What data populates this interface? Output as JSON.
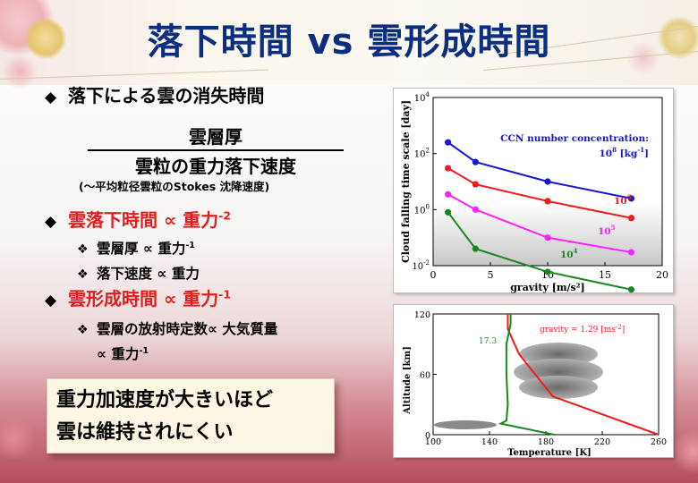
{
  "title": "落下時間 vs 雲形成時間",
  "bullets": {
    "b1": "落下による雲の消失時間",
    "fraction_numerator": "雲層厚",
    "fraction_denominator": "雲粒の重力落下速度",
    "fraction_note": "(〜平均粒径雲粒のStokes 沈降速度)",
    "b2_head": "雲落下時間 ∝ 重力",
    "b2_exp": "-2",
    "b2_sub1_head": "雲層厚 ∝ 重力",
    "b2_sub1_exp": "-1",
    "b2_sub2": "落下速度 ∝ 重力",
    "b3_head": "雲形成時間 ∝ 重力",
    "b3_exp": "-1",
    "b3_sub1_line1": "雲層の放射時定数∝ 大気質量",
    "b3_sub1_line2_head": "∝ 重力",
    "b3_sub1_line2_exp": "-1"
  },
  "callout": {
    "line1": "重力加速度が大きいほど",
    "line2": "雲は維持されにくい"
  },
  "colors": {
    "title": "#0b2e80",
    "red_text": "#e02020",
    "series_blue": "#1515d8",
    "series_red": "#ee1c1c",
    "series_magenta": "#ff20ff",
    "series_green": "#17881e"
  },
  "chart_data": [
    {
      "type": "line",
      "ylabel": "Cloud falling time scale [day]",
      "xlabel": "gravity [m/s²]",
      "x_ticks": [
        "0",
        "5",
        "10",
        "15",
        "20"
      ],
      "y_ticks": [
        {
          "base": "10",
          "exp": "4"
        },
        {
          "base": "10",
          "exp": "2"
        },
        {
          "base": "10",
          "exp": "0"
        },
        {
          "base": "10",
          "exp": "-2"
        }
      ],
      "xlim": [
        0,
        20
      ],
      "ylim_log10": [
        -2,
        4
      ],
      "yscale": "log",
      "legend_title": "CCN number concentration:",
      "series": [
        {
          "name": "10⁸ [kg⁻¹]",
          "label_base": "10",
          "label_exp": "8",
          "label_unit": " [kg",
          "label_unit_exp": "-1",
          "label_close": "]",
          "color": "#1515d8",
          "x": [
            1.3,
            3.7,
            10.0,
            17.3
          ],
          "y": [
            250,
            50,
            10,
            2.5
          ]
        },
        {
          "name": "10⁶",
          "label_base": "10",
          "label_exp": "6",
          "color": "#ee1c1c",
          "x": [
            1.3,
            3.7,
            10.0,
            17.3
          ],
          "y": [
            30,
            8,
            2,
            0.5
          ]
        },
        {
          "name": "10⁵",
          "label_base": "10",
          "label_exp": "5",
          "color": "#ff20ff",
          "x": [
            1.3,
            3.7,
            10.0,
            17.3
          ],
          "y": [
            3.5,
            1.0,
            0.1,
            0.03
          ]
        },
        {
          "name": "10⁴",
          "label_base": "10",
          "label_exp": "4",
          "color": "#17881e",
          "x": [
            1.3,
            3.7,
            10.0,
            17.3
          ],
          "y": [
            0.8,
            0.04,
            0.006,
            0.0014
          ]
        }
      ],
      "grid": false
    },
    {
      "type": "line",
      "ylabel": "Altitude [km]",
      "xlabel": "Temperature [K]",
      "x_ticks": [
        "100",
        "140",
        "180",
        "220",
        "260"
      ],
      "y_ticks": [
        "0",
        "60",
        "120"
      ],
      "xlim": [
        100,
        260
      ],
      "ylim": [
        0,
        120
      ],
      "annotation_gravity": "gravity = 1.29 [ms",
      "annotation_gravity_exp": "-2",
      "annotation_gravity_close": "]",
      "annotation_green": "17.3",
      "series": [
        {
          "name": "gravity = 1.29",
          "color": "#ee1c1c",
          "x": [
            153,
            153,
            161,
            185,
            260
          ],
          "y": [
            120,
            105,
            80,
            38,
            0
          ]
        },
        {
          "name": "17.3",
          "color": "#17881e",
          "x": [
            155,
            155,
            152,
            152,
            153,
            152,
            148,
            186
          ],
          "y": [
            120,
            110,
            90,
            60,
            30,
            14,
            11,
            0
          ]
        }
      ],
      "grid": false
    }
  ]
}
